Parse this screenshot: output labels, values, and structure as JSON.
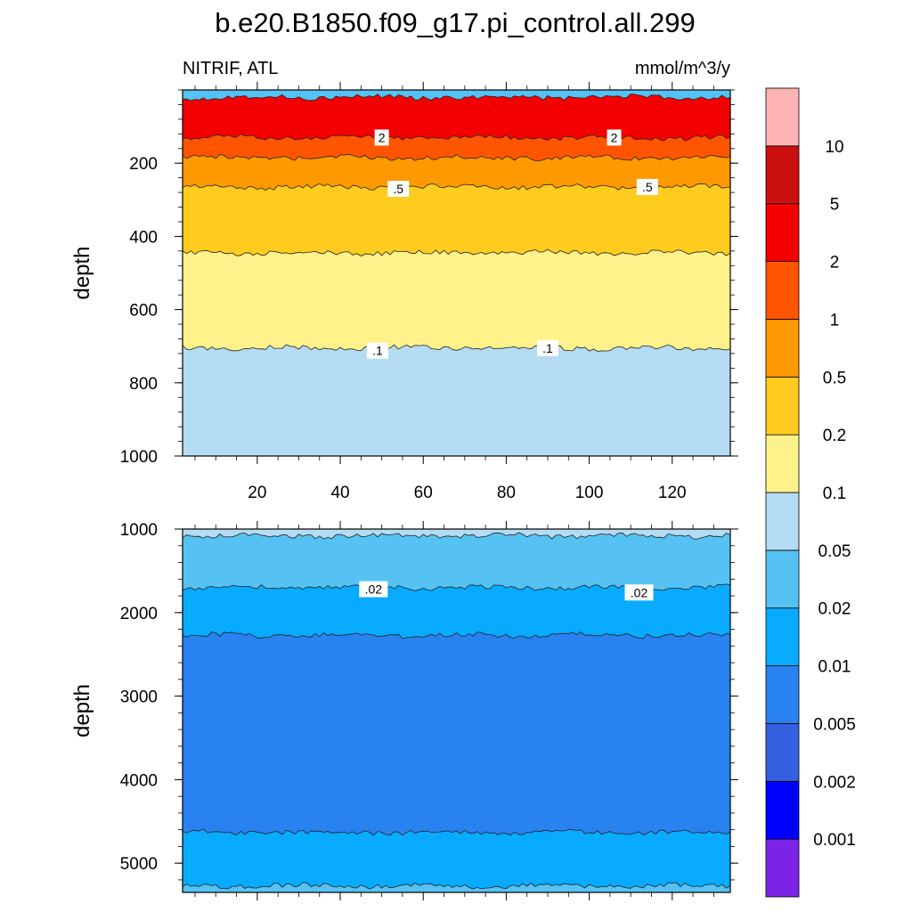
{
  "chart_data": {
    "type": "contour",
    "title": "b.e20.B1850.f09_g17.pi_control.all.299",
    "left_string": "NITRIF, ATL",
    "right_string": "mmol/m^3/y",
    "ylabel": "depth",
    "xlim": [
      2,
      134
    ],
    "x_ticks": [
      20,
      40,
      60,
      80,
      100,
      120
    ],
    "colorbar": {
      "levels": [
        "0.001",
        "0.002",
        "0.005",
        "0.01",
        "0.02",
        "0.05",
        "0.1",
        "0.2",
        "0.5",
        "1",
        "2",
        "5",
        "10"
      ],
      "colors": [
        "#7b24e8",
        "#0000ff",
        "#3361e0",
        "#2882f0",
        "#08abff",
        "#55c2f3",
        "#b4dcf2",
        "#fff28a",
        "#fecb1f",
        "#ff9900",
        "#ff5500",
        "#f40000",
        "#cc1010",
        "#ffb3b3"
      ]
    },
    "panels": [
      {
        "name": "upper",
        "ylim": [
          0,
          1000
        ],
        "y_ticks": [
          200,
          400,
          600,
          800,
          1000
        ],
        "bands": [
          {
            "top": 0,
            "bottom": 20,
            "color": "#55c2f3"
          },
          {
            "top": 20,
            "bottom": 130,
            "color": "#f40000"
          },
          {
            "top": 130,
            "bottom": 185,
            "color": "#ff5500"
          },
          {
            "top": 185,
            "bottom": 265,
            "color": "#ff9900"
          },
          {
            "top": 265,
            "bottom": 445,
            "color": "#fecb1f"
          },
          {
            "top": 445,
            "bottom": 705,
            "color": "#fff28a"
          },
          {
            "top": 705,
            "bottom": 1000,
            "color": "#b4dcf2"
          }
        ],
        "labels": [
          {
            "text": "2",
            "x": 50,
            "depth": 130
          },
          {
            "text": "2",
            "x": 106,
            "depth": 130
          },
          {
            "text": ".5",
            "x": 54,
            "depth": 270
          },
          {
            "text": ".5",
            "x": 114,
            "depth": 265
          },
          {
            "text": ".1",
            "x": 49,
            "depth": 712
          },
          {
            "text": ".1",
            "x": 90,
            "depth": 705
          }
        ]
      },
      {
        "name": "lower",
        "ylim": [
          1000,
          5350
        ],
        "y_ticks": [
          1000,
          2000,
          3000,
          4000,
          5000
        ],
        "bands": [
          {
            "top": 1000,
            "bottom": 1080,
            "color": "#b4dcf2"
          },
          {
            "top": 1080,
            "bottom": 1700,
            "color": "#55c2f3"
          },
          {
            "top": 1700,
            "bottom": 2270,
            "color": "#08abff"
          },
          {
            "top": 2270,
            "bottom": 4630,
            "color": "#2882f0"
          },
          {
            "top": 4630,
            "bottom": 5270,
            "color": "#08abff"
          },
          {
            "top": 5270,
            "bottom": 5350,
            "color": "#55c2f3"
          }
        ],
        "labels": [
          {
            "text": ".02",
            "x": 48,
            "depth": 1720
          },
          {
            "text": ".02",
            "x": 112,
            "depth": 1760
          }
        ]
      }
    ]
  }
}
